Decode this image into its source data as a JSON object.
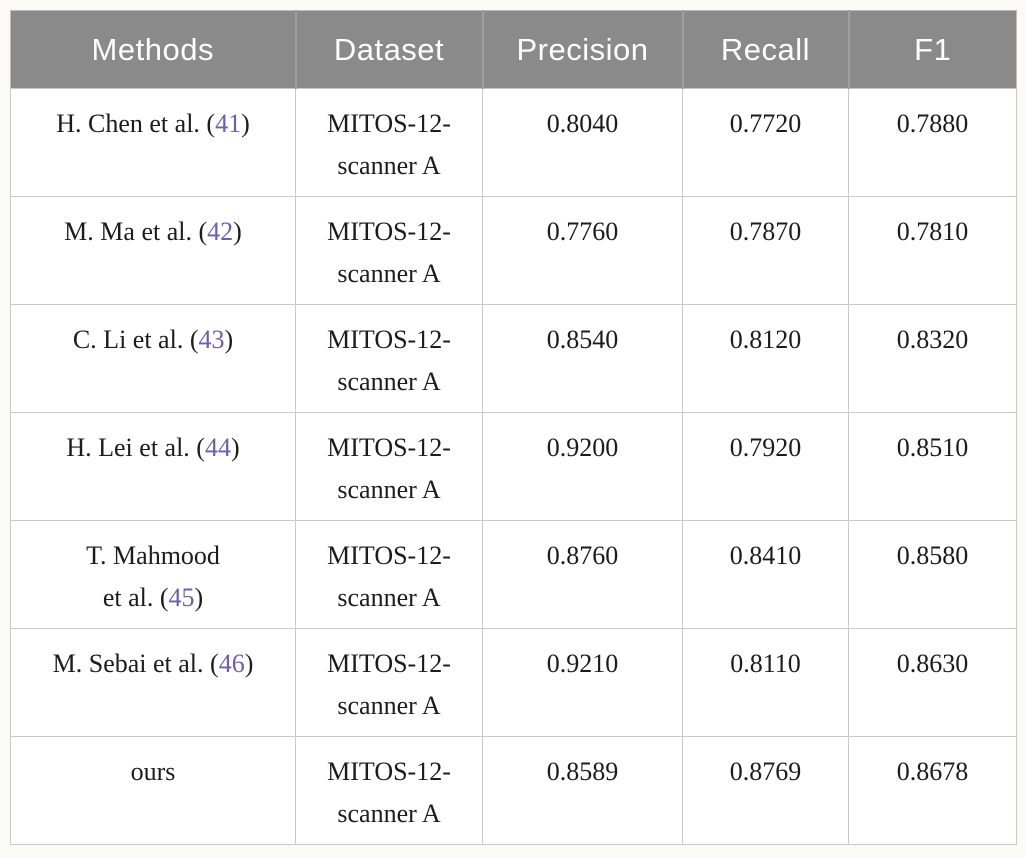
{
  "colors": {
    "page_background": "#fbfaf5",
    "header_background": "#8a8a8a",
    "header_text": "#fdfdfd",
    "body_text": "#1c1c1c",
    "citation_link": "#6c60ab",
    "grid_line": "#c9c9c9"
  },
  "table": {
    "columns": {
      "methods": "Methods",
      "dataset": "Dataset",
      "precision": "Precision",
      "recall": "Recall",
      "f1": "F1"
    },
    "rows": [
      {
        "method": {
          "text": "H. Chen et al. (",
          "ref": "41",
          "close": ")"
        },
        "dataset": "MITOS-12-\nscanner A",
        "precision": "0.8040",
        "recall": "0.7720",
        "f1": "0.7880"
      },
      {
        "method": {
          "text": "M. Ma et al. (",
          "ref": "42",
          "close": ")"
        },
        "dataset": "MITOS-12-\nscanner A",
        "precision": "0.7760",
        "recall": "0.7870",
        "f1": "0.7810"
      },
      {
        "method": {
          "text": "C. Li et al. (",
          "ref": "43",
          "close": ")"
        },
        "dataset": "MITOS-12-\nscanner A",
        "precision": "0.8540",
        "recall": "0.8120",
        "f1": "0.8320"
      },
      {
        "method": {
          "text": "H. Lei et al. (",
          "ref": "44",
          "close": ")"
        },
        "dataset": "MITOS-12-\nscanner A",
        "precision": "0.9200",
        "recall": "0.7920",
        "f1": "0.8510"
      },
      {
        "method": {
          "text": "T. Mahmood\net al. (",
          "ref": "45",
          "close": ")"
        },
        "dataset": "MITOS-12-\nscanner A",
        "precision": "0.8760",
        "recall": "0.8410",
        "f1": "0.8580"
      },
      {
        "method": {
          "text": "M. Sebai et al. (",
          "ref": "46",
          "close": ")"
        },
        "dataset": "MITOS-12-\nscanner A",
        "precision": "0.9210",
        "recall": "0.8110",
        "f1": "0.8630"
      },
      {
        "method": {
          "text": "ours",
          "ref": "",
          "close": ""
        },
        "dataset": "MITOS-12-\nscanner A",
        "precision": "0.8589",
        "recall": "0.8769",
        "f1": "0.8678"
      }
    ]
  }
}
